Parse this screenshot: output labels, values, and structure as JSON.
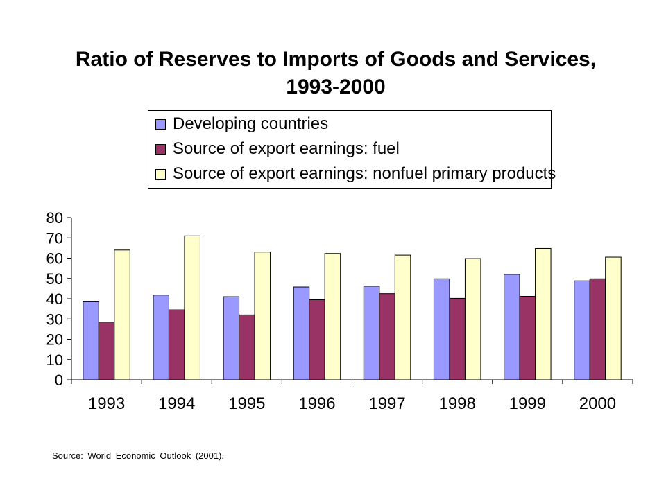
{
  "chart_data": {
    "type": "bar",
    "title_lines": [
      "Ratio of Reserves to Imports of Goods and Services,",
      "1993-2000"
    ],
    "xlabel": "",
    "ylabel": "",
    "categories": [
      "1993",
      "1994",
      "1995",
      "1996",
      "1997",
      "1998",
      "1999",
      "2000"
    ],
    "ylim": [
      0,
      80
    ],
    "yticks": [
      "0",
      "10",
      "20",
      "30",
      "40",
      "50",
      "60",
      "70",
      "80"
    ],
    "ytick_values": [
      0,
      10,
      20,
      30,
      40,
      50,
      60,
      70,
      80
    ],
    "grid": false,
    "legend_position": "top",
    "series": [
      {
        "name": "Developing countries",
        "color": "#9999ff",
        "values": [
          38.5,
          41.8,
          41.0,
          45.8,
          46.2,
          49.8,
          52.0,
          48.8
        ]
      },
      {
        "name": "Source of export earnings: fuel",
        "color": "#993366",
        "values": [
          28.5,
          34.5,
          32.0,
          39.5,
          42.5,
          40.2,
          41.2,
          49.8
        ]
      },
      {
        "name": "Source of export earnings: nonfuel primary products",
        "color": "#ffffcc",
        "values": [
          64.0,
          71.0,
          63.0,
          62.3,
          61.5,
          59.8,
          64.8,
          60.5
        ]
      }
    ]
  },
  "source_note": "Source: World Economic Outlook (2001)."
}
